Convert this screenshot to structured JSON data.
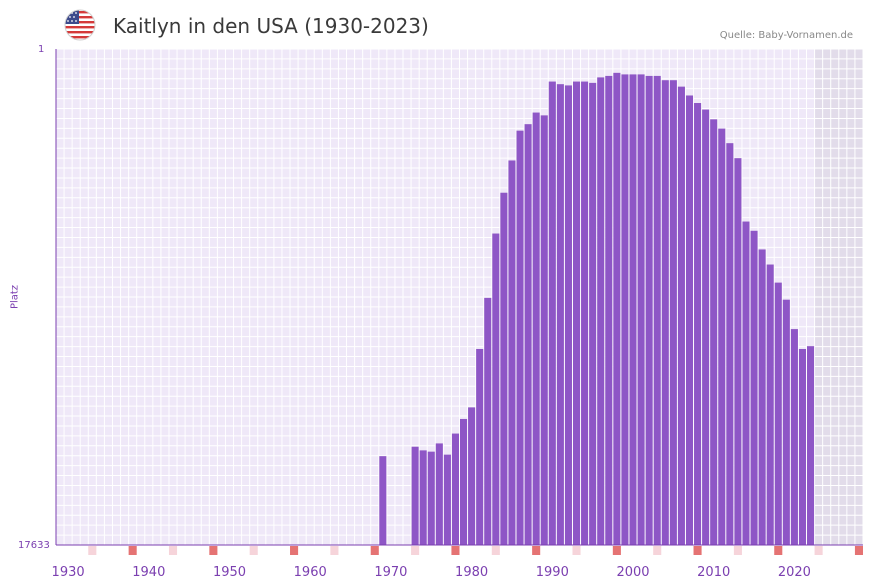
{
  "header": {
    "title": "Kaitlyn in den USA (1930-2023)",
    "source": "Quelle: Baby-Vornamen.de",
    "flag_icon": "us-flag-icon"
  },
  "colors": {
    "bar": "#8e56c6",
    "plot_bg": "#efe8f8",
    "grid": "#ffffff",
    "shade": "#e2dcea",
    "axis": "#7b3fb0",
    "marker_strong": "#e57373",
    "marker_light": "#f6d4da"
  },
  "chart_data": {
    "type": "bar",
    "title": "Kaitlyn in den USA (1930-2023)",
    "xlabel": "",
    "ylabel": "Platz",
    "y_axis_inverted": true,
    "y_scale": "log",
    "ylim": [
      1,
      17633
    ],
    "y_tick_labels": [
      "1",
      "17633"
    ],
    "xlim": [
      1929,
      2029
    ],
    "shaded_future_from": 2023,
    "x_ticks": [
      1930,
      1940,
      1950,
      1960,
      1970,
      1980,
      1990,
      2000,
      2010,
      2020
    ],
    "x_tick_labels": [
      "1930",
      "1940",
      "1950",
      "1960",
      "1970",
      "1980",
      "1990",
      "2000",
      "2010",
      "2020"
    ],
    "categories": [
      1969,
      1973,
      1974,
      1975,
      1976,
      1977,
      1978,
      1979,
      1980,
      1981,
      1982,
      1983,
      1984,
      1985,
      1986,
      1987,
      1988,
      1989,
      1990,
      1991,
      1992,
      1993,
      1994,
      1995,
      1996,
      1997,
      1998,
      1999,
      2000,
      2001,
      2002,
      2003,
      2004,
      2005,
      2006,
      2007,
      2008,
      2009,
      2010,
      2011,
      2012,
      2013,
      2014,
      2015,
      2016,
      2017,
      2018,
      2019,
      2020,
      2021,
      2022
    ],
    "values": [
      3060,
      2540,
      2730,
      2800,
      2380,
      2970,
      1960,
      1470,
      1170,
      370,
      135,
      38,
      17,
      9,
      5,
      4.4,
      3.5,
      3.7,
      1.9,
      2.0,
      2.05,
      1.9,
      1.9,
      1.95,
      1.75,
      1.7,
      1.6,
      1.65,
      1.65,
      1.65,
      1.7,
      1.7,
      1.85,
      1.85,
      2.1,
      2.5,
      2.9,
      3.3,
      4.0,
      4.8,
      6.4,
      8.6,
      30,
      36,
      52,
      70,
      100,
      140,
      250,
      370,
      350
    ]
  }
}
